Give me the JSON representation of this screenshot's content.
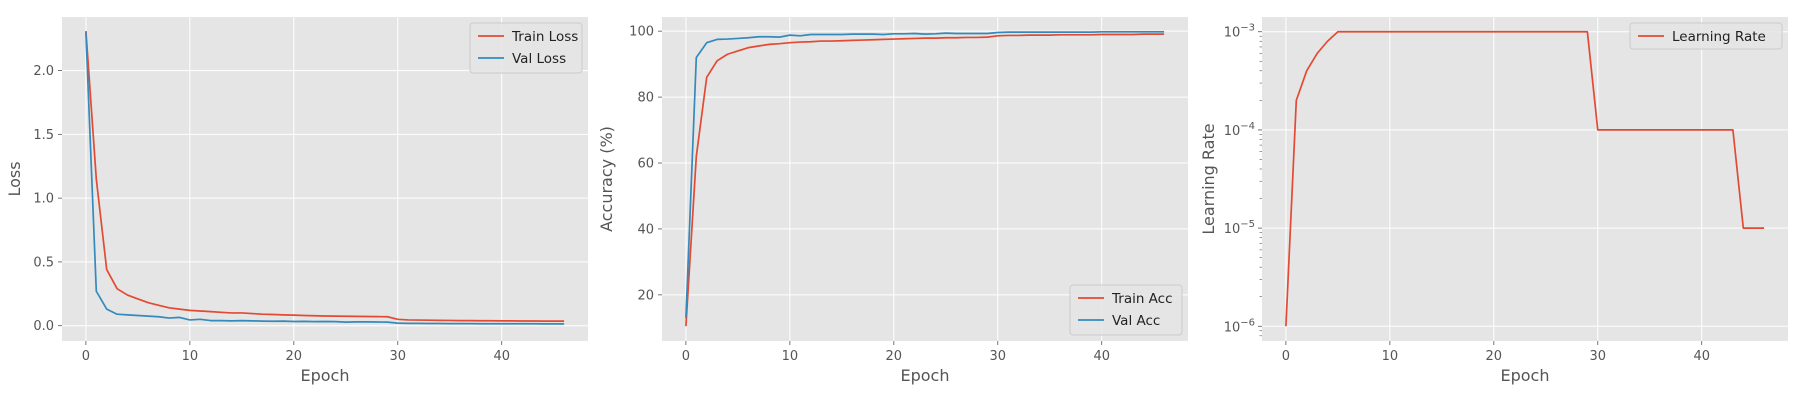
{
  "chart_data": [
    {
      "type": "line",
      "xlabel": "Epoch",
      "ylabel": "Loss",
      "xlim": [
        -2.3,
        48.3
      ],
      "ylim": [
        -0.12,
        2.42
      ],
      "xticks": [
        0,
        10,
        20,
        30,
        40
      ],
      "yticks": [
        0.0,
        0.5,
        1.0,
        1.5,
        2.0
      ],
      "ytick_labels": [
        "0.0",
        "0.5",
        "1.0",
        "1.5",
        "2.0"
      ],
      "grid": true,
      "legend": "upper-right",
      "x": [
        0,
        1,
        2,
        3,
        4,
        5,
        6,
        7,
        8,
        9,
        10,
        11,
        12,
        13,
        14,
        15,
        16,
        17,
        18,
        19,
        20,
        21,
        22,
        23,
        24,
        25,
        26,
        27,
        28,
        29,
        30,
        31,
        32,
        33,
        34,
        35,
        36,
        37,
        38,
        39,
        40,
        41,
        42,
        43,
        44,
        45,
        46
      ],
      "series": [
        {
          "name": "Train Loss",
          "color": "#E24A33",
          "values": [
            2.31,
            1.15,
            0.44,
            0.29,
            0.24,
            0.21,
            0.18,
            0.16,
            0.14,
            0.13,
            0.12,
            0.115,
            0.11,
            0.105,
            0.1,
            0.1,
            0.095,
            0.09,
            0.088,
            0.085,
            0.083,
            0.08,
            0.078,
            0.076,
            0.075,
            0.074,
            0.073,
            0.072,
            0.071,
            0.07,
            0.05,
            0.045,
            0.044,
            0.043,
            0.042,
            0.041,
            0.04,
            0.04,
            0.039,
            0.039,
            0.038,
            0.038,
            0.037,
            0.037,
            0.036,
            0.036,
            0.036
          ]
        },
        {
          "name": "Val Loss",
          "color": "#348ABD",
          "values": [
            2.3,
            0.27,
            0.13,
            0.09,
            0.085,
            0.08,
            0.075,
            0.07,
            0.06,
            0.065,
            0.045,
            0.05,
            0.04,
            0.04,
            0.038,
            0.04,
            0.038,
            0.036,
            0.035,
            0.036,
            0.033,
            0.034,
            0.032,
            0.033,
            0.032,
            0.028,
            0.03,
            0.03,
            0.029,
            0.028,
            0.02,
            0.018,
            0.018,
            0.017,
            0.017,
            0.016,
            0.016,
            0.016,
            0.015,
            0.015,
            0.015,
            0.015,
            0.015,
            0.015,
            0.014,
            0.014,
            0.014
          ]
        }
      ]
    },
    {
      "type": "line",
      "xlabel": "Epoch",
      "ylabel": "Accuracy (%)",
      "xlim": [
        -2.3,
        48.3
      ],
      "ylim": [
        6.0,
        104.3
      ],
      "xticks": [
        0,
        10,
        20,
        30,
        40
      ],
      "yticks": [
        20,
        40,
        60,
        80,
        100
      ],
      "ytick_labels": [
        "20",
        "40",
        "60",
        "80",
        "100"
      ],
      "grid": true,
      "legend": "lower-right",
      "x": [
        0,
        1,
        2,
        3,
        4,
        5,
        6,
        7,
        8,
        9,
        10,
        11,
        12,
        13,
        14,
        15,
        16,
        17,
        18,
        19,
        20,
        21,
        22,
        23,
        24,
        25,
        26,
        27,
        28,
        29,
        30,
        31,
        32,
        33,
        34,
        35,
        36,
        37,
        38,
        39,
        40,
        41,
        42,
        43,
        44,
        45,
        46
      ],
      "series": [
        {
          "name": "Train Acc",
          "color": "#E24A33",
          "values": [
            10.5,
            62,
            86,
            91,
            93,
            94,
            95,
            95.5,
            96,
            96.2,
            96.5,
            96.7,
            96.8,
            97,
            97,
            97.1,
            97.2,
            97.3,
            97.4,
            97.5,
            97.6,
            97.7,
            97.8,
            97.9,
            97.9,
            98,
            98,
            98.1,
            98.1,
            98.2,
            98.6,
            98.7,
            98.7,
            98.8,
            98.8,
            98.8,
            98.9,
            98.9,
            98.9,
            98.9,
            99,
            99,
            99,
            99,
            99.1,
            99.1,
            99.1
          ]
        },
        {
          "name": "Val Acc",
          "color": "#348ABD",
          "values": [
            13,
            92,
            96.5,
            97.5,
            97.6,
            97.8,
            98,
            98.3,
            98.3,
            98.2,
            98.8,
            98.6,
            99,
            99,
            99,
            99,
            99.1,
            99.1,
            99.1,
            99,
            99.2,
            99.2,
            99.3,
            99.1,
            99.2,
            99.4,
            99.3,
            99.3,
            99.3,
            99.3,
            99.6,
            99.7,
            99.7,
            99.7,
            99.7,
            99.7,
            99.7,
            99.7,
            99.7,
            99.7,
            99.8,
            99.8,
            99.8,
            99.8,
            99.8,
            99.8,
            99.8
          ]
        }
      ]
    },
    {
      "type": "line",
      "xlabel": "Epoch",
      "ylabel": "Learning Rate",
      "yscale": "log",
      "xlim": [
        -2.3,
        48.3
      ],
      "ylim_log10": [
        -6.15,
        -2.85
      ],
      "xticks": [
        0,
        10,
        20,
        30,
        40
      ],
      "yticks": [
        1e-06,
        1e-05,
        0.0001,
        0.001
      ],
      "ytick_labels": [
        {
          "base": "10",
          "exp": "−6"
        },
        {
          "base": "10",
          "exp": "−5"
        },
        {
          "base": "10",
          "exp": "−4"
        },
        {
          "base": "10",
          "exp": "−3"
        }
      ],
      "grid": true,
      "legend": "upper-right",
      "x": [
        0,
        1,
        2,
        3,
        4,
        5,
        6,
        7,
        8,
        9,
        10,
        11,
        12,
        13,
        14,
        15,
        16,
        17,
        18,
        19,
        20,
        21,
        22,
        23,
        24,
        25,
        26,
        27,
        28,
        29,
        30,
        31,
        32,
        33,
        34,
        35,
        36,
        37,
        38,
        39,
        40,
        41,
        42,
        43,
        44,
        45,
        46
      ],
      "series": [
        {
          "name": "Learning Rate",
          "color": "#E24A33",
          "values": [
            1e-06,
            0.0002,
            0.0004,
            0.0006,
            0.0008,
            0.001,
            0.001,
            0.001,
            0.001,
            0.001,
            0.001,
            0.001,
            0.001,
            0.001,
            0.001,
            0.001,
            0.001,
            0.001,
            0.001,
            0.001,
            0.001,
            0.001,
            0.001,
            0.001,
            0.001,
            0.001,
            0.001,
            0.001,
            0.001,
            0.001,
            0.0001,
            0.0001,
            0.0001,
            0.0001,
            0.0001,
            0.0001,
            0.0001,
            0.0001,
            0.0001,
            0.0001,
            0.0001,
            0.0001,
            0.0001,
            0.0001,
            1e-05,
            1e-05,
            1e-05
          ]
        }
      ]
    }
  ]
}
